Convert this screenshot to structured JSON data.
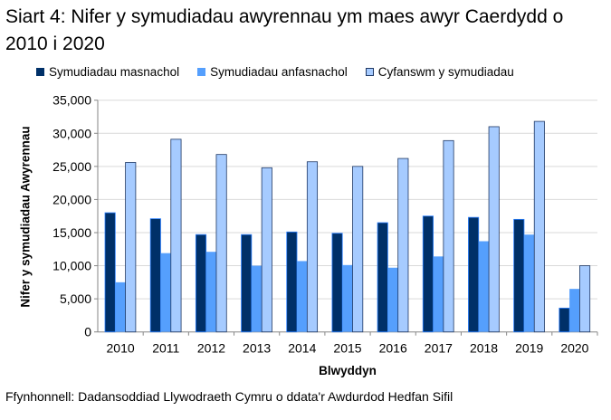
{
  "chart_data": {
    "type": "bar",
    "title": "Siart 4: Nifer y symudiadau awyrennau ym maes awyr Caerdydd o 2010 i 2020",
    "xlabel": "Blwyddyn",
    "ylabel": "Nifer y symudiadau Awyrennau",
    "ylim": [
      0,
      35000
    ],
    "yticks": [
      "0",
      "5,000",
      "10,000",
      "15,000",
      "20,000",
      "25,000",
      "30,000",
      "35,000"
    ],
    "grid": true,
    "legend": "top",
    "categories": [
      "2010",
      "2011",
      "2012",
      "2013",
      "2014",
      "2015",
      "2016",
      "2017",
      "2018",
      "2019",
      "2020"
    ],
    "series": [
      {
        "name": "Symudiadau masnachol",
        "color": "#003068",
        "values": [
          18000,
          17100,
          14700,
          14700,
          15100,
          14900,
          16500,
          17500,
          17300,
          17000,
          3600
        ]
      },
      {
        "name": "Symudiadau anfasnachol",
        "color": "#559ffd",
        "values": [
          7500,
          11900,
          12100,
          10000,
          10700,
          10100,
          9700,
          11400,
          13700,
          14700,
          6500
        ]
      },
      {
        "name": "Cyfanswm y symudiadau",
        "color": "#a6cbff",
        "values": [
          25600,
          29100,
          26800,
          24800,
          25700,
          25000,
          26200,
          28900,
          31000,
          31800,
          10000
        ]
      }
    ]
  },
  "source": "Ffynhonnell: Dadansoddiad Llywodraeth Cymru o ddata'r Awdurdod Hedfan Sifil"
}
